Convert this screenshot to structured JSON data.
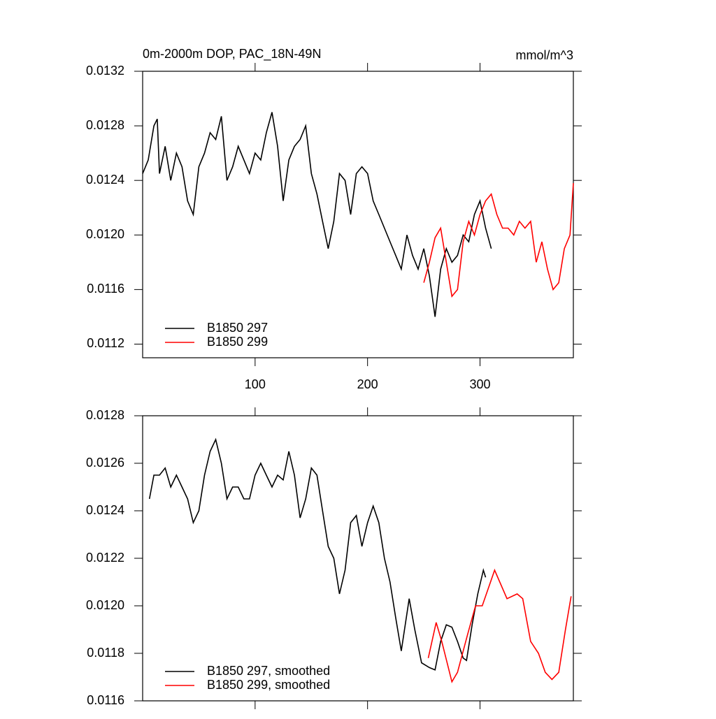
{
  "chart_data": [
    {
      "type": "line",
      "title": "0m-2000m DOP, PAC_18N-49N",
      "units": "mmol/m^3",
      "xlim": [
        0,
        383
      ],
      "xticks": [
        100,
        200,
        300
      ],
      "xtick_labels": true,
      "ylim": [
        0.0111,
        0.0132
      ],
      "yticks": [
        0.0132,
        0.0128,
        0.0124,
        {
          "value": 0.012,
          "label": "0.0120"
        },
        0.0116,
        0.0112
      ],
      "legend": "lower left",
      "series": [
        {
          "name": "B1850 297",
          "color": "#000000",
          "x": [
            0,
            5,
            10,
            13,
            15,
            20,
            25,
            30,
            35,
            40,
            45,
            50,
            55,
            60,
            65,
            70,
            75,
            80,
            85,
            90,
            95,
            100,
            105,
            110,
            115,
            120,
            125,
            130,
            135,
            140,
            145,
            150,
            155,
            160,
            165,
            170,
            175,
            180,
            185,
            190,
            195,
            200,
            205,
            210,
            215,
            220,
            225,
            230,
            235,
            240,
            245,
            250,
            255,
            260,
            265,
            270,
            275,
            280,
            285,
            290,
            295,
            300,
            305,
            310
          ],
          "values": [
            0.01245,
            0.01255,
            0.0128,
            0.01285,
            0.01245,
            0.01265,
            0.0124,
            0.0126,
            0.0125,
            0.01225,
            0.01215,
            0.0125,
            0.0126,
            0.01275,
            0.0127,
            0.01287,
            0.0124,
            0.0125,
            0.01265,
            0.01255,
            0.01245,
            0.0126,
            0.01255,
            0.01275,
            0.0129,
            0.01265,
            0.01225,
            0.01255,
            0.01265,
            0.0127,
            0.0128,
            0.01245,
            0.0123,
            0.0121,
            0.0119,
            0.0121,
            0.01245,
            0.0124,
            0.01215,
            0.01245,
            0.0125,
            0.01245,
            0.01225,
            0.01215,
            0.01205,
            0.01195,
            0.01185,
            0.01175,
            0.012,
            0.01185,
            0.01175,
            0.0119,
            0.0117,
            0.0114,
            0.01175,
            0.0119,
            0.0118,
            0.01185,
            0.012,
            0.01195,
            0.01215,
            0.01225,
            0.01205,
            0.0119
          ]
        },
        {
          "name": "B1850 299",
          "color": "#ff0000",
          "x": [
            250,
            255,
            260,
            265,
            270,
            275,
            280,
            285,
            290,
            295,
            300,
            305,
            310,
            315,
            320,
            325,
            330,
            335,
            340,
            345,
            350,
            355,
            360,
            365,
            370,
            375,
            380,
            383
          ],
          "values": [
            0.01165,
            0.0118,
            0.01198,
            0.01205,
            0.0118,
            0.01155,
            0.0116,
            0.01195,
            0.0121,
            0.012,
            0.01215,
            0.01225,
            0.0123,
            0.01215,
            0.01205,
            0.01205,
            0.012,
            0.0121,
            0.01205,
            0.0121,
            0.0118,
            0.01195,
            0.01175,
            0.0116,
            0.01165,
            0.0119,
            0.012,
            0.01238
          ]
        }
      ]
    },
    {
      "type": "line",
      "xlim": [
        0,
        383
      ],
      "xticks": [
        100,
        200,
        300
      ],
      "xtick_labels": false,
      "ylim": [
        0.0116,
        0.0128
      ],
      "yticks": [
        0.0128,
        0.0126,
        0.0124,
        0.0122,
        {
          "value": 0.012,
          "label": "0.0120"
        },
        0.0118,
        0.0116
      ],
      "legend": "lower left",
      "series": [
        {
          "name": "B1850 297, smoothed",
          "color": "#000000",
          "x": [
            6,
            10,
            15,
            20,
            25,
            30,
            35,
            40,
            45,
            50,
            55,
            60,
            65,
            70,
            75,
            80,
            85,
            90,
            95,
            100,
            105,
            110,
            115,
            120,
            125,
            130,
            135,
            140,
            145,
            150,
            155,
            160,
            165,
            170,
            175,
            180,
            185,
            190,
            195,
            200,
            205,
            210,
            215,
            220,
            225,
            230,
            237,
            242,
            248,
            255,
            260,
            265,
            270,
            275,
            280,
            285,
            288,
            293,
            298,
            303,
            305
          ],
          "values": [
            0.01245,
            0.01255,
            0.01255,
            0.01258,
            0.0125,
            0.01255,
            0.0125,
            0.01245,
            0.01235,
            0.0124,
            0.01255,
            0.01265,
            0.0127,
            0.0126,
            0.01245,
            0.0125,
            0.0125,
            0.01245,
            0.01245,
            0.01255,
            0.0126,
            0.01255,
            0.0125,
            0.01255,
            0.01253,
            0.01265,
            0.01255,
            0.01237,
            0.01245,
            0.01258,
            0.01255,
            0.0124,
            0.01225,
            0.0122,
            0.01205,
            0.01215,
            0.01235,
            0.01238,
            0.01225,
            0.01235,
            0.01242,
            0.01235,
            0.0122,
            0.0121,
            0.01195,
            0.01181,
            0.01203,
            0.0119,
            0.01176,
            0.01174,
            0.01173,
            0.01185,
            0.01192,
            0.01191,
            0.01185,
            0.01178,
            0.01177,
            0.01192,
            0.01205,
            0.01215,
            0.01212
          ]
        },
        {
          "name": "B1850 299, smoothed",
          "color": "#ff0000",
          "x": [
            254,
            261,
            266,
            275,
            280,
            289,
            296,
            302,
            313,
            324,
            333,
            338,
            345,
            352,
            358,
            364,
            370,
            376,
            381
          ],
          "values": [
            0.01178,
            0.01193,
            0.01185,
            0.01168,
            0.01172,
            0.01188,
            0.012,
            0.012,
            0.01215,
            0.01203,
            0.01205,
            0.01203,
            0.01185,
            0.0118,
            0.01172,
            0.01169,
            0.01172,
            0.0119,
            0.01204
          ]
        }
      ]
    }
  ]
}
